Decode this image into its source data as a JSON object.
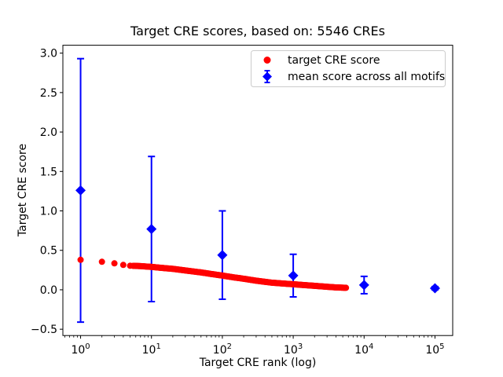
{
  "chart_data": {
    "type": "scatter",
    "title": "Target CRE scores, based on: 5546 CREs",
    "xlabel": "Target CRE rank (log)",
    "ylabel": "Target CRE score",
    "x_scale": "log",
    "xlim_log10": [
      -0.25,
      5.25
    ],
    "ylim": [
      -0.58,
      3.1
    ],
    "x_tick_base": "10",
    "x_tick_exponents": [
      "0",
      "1",
      "2",
      "3",
      "4",
      "5"
    ],
    "x_tick_values": [
      1,
      10,
      100,
      1000,
      10000,
      100000
    ],
    "y_tick_values": [
      3.0,
      2.5,
      2.0,
      1.5,
      1.0,
      0.5,
      0.0,
      -0.5
    ],
    "y_tick_labels": [
      "3.0",
      "2.5",
      "2.0",
      "1.5",
      "1.0",
      "0.5",
      "0.0",
      "−0.5"
    ],
    "grid": false,
    "legend": {
      "position": "upper right",
      "entries": [
        {
          "label": "target CRE score",
          "marker": "circle",
          "color": "#ff0000"
        },
        {
          "label": "mean score across all motifs",
          "marker": "diamond-errorbar",
          "color": "#0000ff"
        }
      ]
    },
    "series": [
      {
        "name": "target CRE score",
        "marker": "circle",
        "color": "#ff0000",
        "discrete_ranks": [
          1,
          2,
          3,
          4,
          5
        ],
        "band_start_rank": 5.5,
        "band_end_rank": 5546,
        "curve_ranks": [
          1,
          2,
          3,
          4,
          5,
          7,
          10,
          15,
          20,
          30,
          50,
          70,
          100,
          150,
          200,
          300,
          500,
          700,
          1000,
          1500,
          2000,
          3000,
          4000,
          5546
        ],
        "curve_scores": [
          0.38,
          0.355,
          0.335,
          0.315,
          0.305,
          0.3,
          0.29,
          0.275,
          0.265,
          0.245,
          0.22,
          0.2,
          0.18,
          0.155,
          0.14,
          0.115,
          0.09,
          0.08,
          0.07,
          0.058,
          0.05,
          0.038,
          0.03,
          0.025
        ]
      },
      {
        "name": "mean score across all motifs",
        "marker": "diamond",
        "color": "#0000ff",
        "x": [
          1,
          10,
          100,
          1000,
          10000,
          100000
        ],
        "mean": [
          1.26,
          0.77,
          0.44,
          0.18,
          0.06,
          0.02
        ],
        "err": [
          1.67,
          0.92,
          0.56,
          0.27,
          0.11,
          0.02
        ]
      }
    ]
  }
}
